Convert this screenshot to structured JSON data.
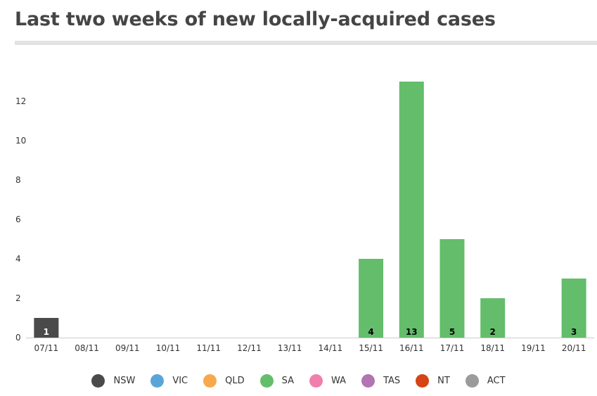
{
  "title": "Last two weeks of new locally-acquired cases",
  "chart_data": {
    "type": "bar",
    "stacked": true,
    "title": "Last two weeks of new locally-acquired cases",
    "xlabel": "",
    "ylabel": "",
    "categories": [
      "07/11",
      "08/11",
      "09/11",
      "10/11",
      "11/11",
      "12/11",
      "13/11",
      "14/11",
      "15/11",
      "16/11",
      "17/11",
      "18/11",
      "19/11",
      "20/11"
    ],
    "y_ticks": [
      0,
      2,
      4,
      6,
      8,
      10,
      12
    ],
    "ylim": [
      0,
      14
    ],
    "grid": false,
    "legend_position": "bottom",
    "series": [
      {
        "name": "NSW",
        "color": "#4a4a4a",
        "label_color": "#ffffff",
        "values": [
          1,
          0,
          0,
          0,
          0,
          0,
          0,
          0,
          0,
          0,
          0,
          0,
          0,
          0
        ]
      },
      {
        "name": "VIC",
        "color": "#5ba4d8",
        "label_color": "#000000",
        "values": [
          0,
          0,
          0,
          0,
          0,
          0,
          0,
          0,
          0,
          0,
          0,
          0,
          0,
          0
        ]
      },
      {
        "name": "QLD",
        "color": "#f6a94c",
        "label_color": "#000000",
        "values": [
          0,
          0,
          0,
          0,
          0,
          0,
          0,
          0,
          0,
          0,
          0,
          0,
          0,
          0
        ]
      },
      {
        "name": "SA",
        "color": "#63bd6b",
        "label_color": "#000000",
        "values": [
          0,
          0,
          0,
          0,
          0,
          0,
          0,
          0,
          4,
          13,
          5,
          2,
          0,
          3
        ]
      },
      {
        "name": "WA",
        "color": "#ef7fad",
        "label_color": "#000000",
        "values": [
          0,
          0,
          0,
          0,
          0,
          0,
          0,
          0,
          0,
          0,
          0,
          0,
          0,
          0
        ]
      },
      {
        "name": "TAS",
        "color": "#b274b2",
        "label_color": "#000000",
        "values": [
          0,
          0,
          0,
          0,
          0,
          0,
          0,
          0,
          0,
          0,
          0,
          0,
          0,
          0
        ]
      },
      {
        "name": "NT",
        "color": "#d44415",
        "label_color": "#000000",
        "values": [
          0,
          0,
          0,
          0,
          0,
          0,
          0,
          0,
          0,
          0,
          0,
          0,
          0,
          0
        ]
      },
      {
        "name": "ACT",
        "color": "#9b9b9b",
        "label_color": "#000000",
        "values": [
          0,
          0,
          0,
          0,
          0,
          0,
          0,
          0,
          0,
          0,
          0,
          0,
          0,
          0
        ]
      }
    ]
  }
}
